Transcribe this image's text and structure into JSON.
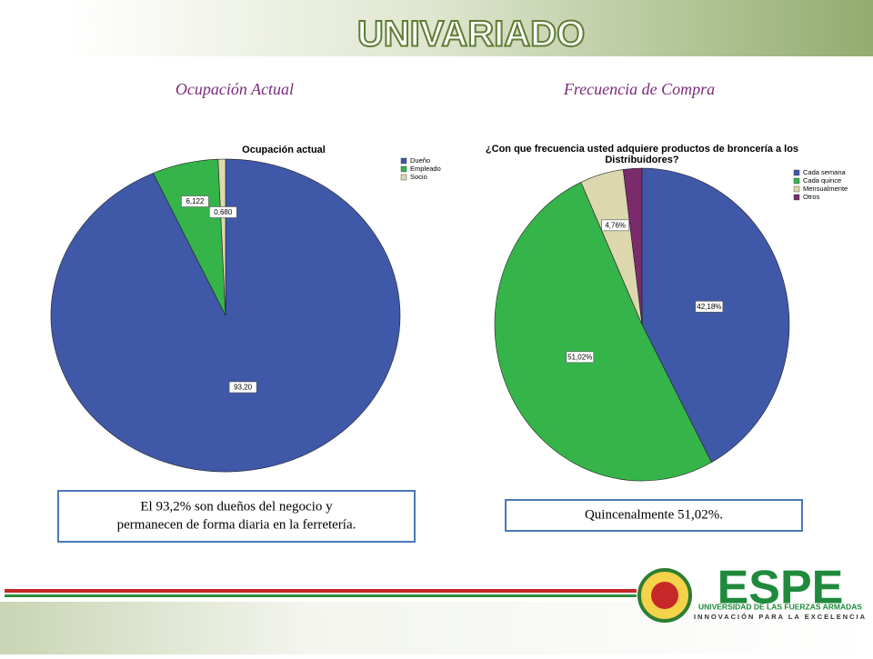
{
  "header": {
    "title": "UNIVARIADO"
  },
  "chart_data": [
    {
      "type": "pie",
      "heading": "Ocupación Actual",
      "title": [
        "Ocupación actual"
      ],
      "categories": [
        "Dueño",
        "Empleado",
        "Socio"
      ],
      "values": [
        93.2,
        6.122,
        0.68
      ],
      "value_labels": [
        "93,20",
        "6,122",
        "0,680"
      ],
      "colors": [
        "#3f58a8",
        "#35b44a",
        "#dcd7ad"
      ],
      "caption": [
        "El 93,2% son dueños del negocio y",
        "permanecen de forma diaria en la ferretería."
      ]
    },
    {
      "type": "pie",
      "heading": "Frecuencia de Compra",
      "title": [
        "¿Con que frecuencia usted adquiere productos de broncería a los",
        "Distribuidores?"
      ],
      "categories": [
        "Cada semana",
        "Cada quince",
        "Mensualmente",
        "Otros"
      ],
      "values": [
        42.18,
        51.02,
        4.76,
        2.04
      ],
      "value_labels": [
        "42,18%",
        "51,02%",
        "4,76%",
        null
      ],
      "colors": [
        "#3f58a8",
        "#35b44a",
        "#dcd7ad",
        "#7b2a6c"
      ],
      "caption": [
        "Quincenalmente 51,02%."
      ]
    }
  ],
  "logo": {
    "name": "ESPE",
    "line1": "UNIVERSIDAD DE LAS FUERZAS ARMADAS",
    "line2": "INNOVACIÓN PARA LA EXCELENCIA"
  }
}
